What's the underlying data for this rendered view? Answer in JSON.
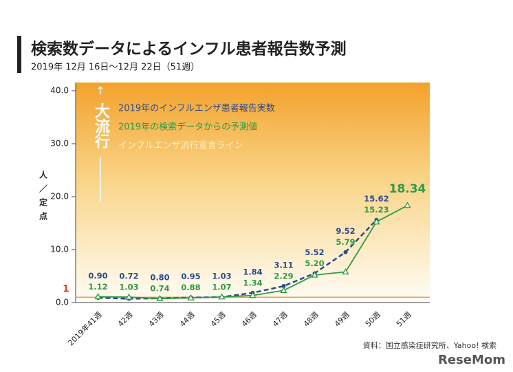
{
  "chart_data": {
    "type": "line",
    "title": "検索数データによるインフル患者報告数予測",
    "subtitle": "2019年 12月 16日〜12月 22日（51週）",
    "y_label": "人／定点",
    "annotation": "大流行",
    "source": "資料：国立感染症研究所、Yahoo! 検索",
    "watermark": "ReseMom",
    "categories": [
      "2019年41週",
      "42週",
      "43週",
      "44週",
      "45週",
      "46週",
      "47週",
      "48週",
      "49週",
      "50週",
      "51週"
    ],
    "series": [
      {
        "name": "2019年のインフルエンザ患者報告実数",
        "color": "#2c4a8c",
        "dashed": true,
        "marker": "dot",
        "values": [
          0.9,
          0.72,
          0.8,
          0.95,
          1.03,
          1.84,
          3.11,
          5.52,
          9.52,
          15.62,
          null
        ],
        "value_labels": [
          "0.90",
          "0.72",
          "0.80",
          "0.95",
          "1.03",
          "1.84",
          "3.11",
          "5.52",
          "9.52",
          "15.62",
          null
        ]
      },
      {
        "name": "2019年の検索データからの予測値",
        "color": "#2e9a44",
        "dashed": false,
        "marker": "triangle",
        "values": [
          1.12,
          1.03,
          0.74,
          0.88,
          1.07,
          1.34,
          2.29,
          5.2,
          5.79,
          15.23,
          18.34
        ],
        "value_labels": [
          "1.12",
          "1.03",
          "0.74",
          "0.88",
          "1.07",
          "1.34",
          "2.29",
          "5.20",
          "5.79",
          "15.23",
          "18.34"
        ]
      }
    ],
    "threshold_line": {
      "name": "インフルエンザ流行宣言ライン",
      "value": 1,
      "color": "#e8a040"
    },
    "ylim": [
      0,
      40
    ],
    "yticks": [
      {
        "value": 0,
        "label": "0.0"
      },
      {
        "value": 10,
        "label": "10.0"
      },
      {
        "value": 20,
        "label": "20.0"
      },
      {
        "value": 30,
        "label": "30.0"
      },
      {
        "value": 40,
        "label": "40.0"
      }
    ]
  }
}
